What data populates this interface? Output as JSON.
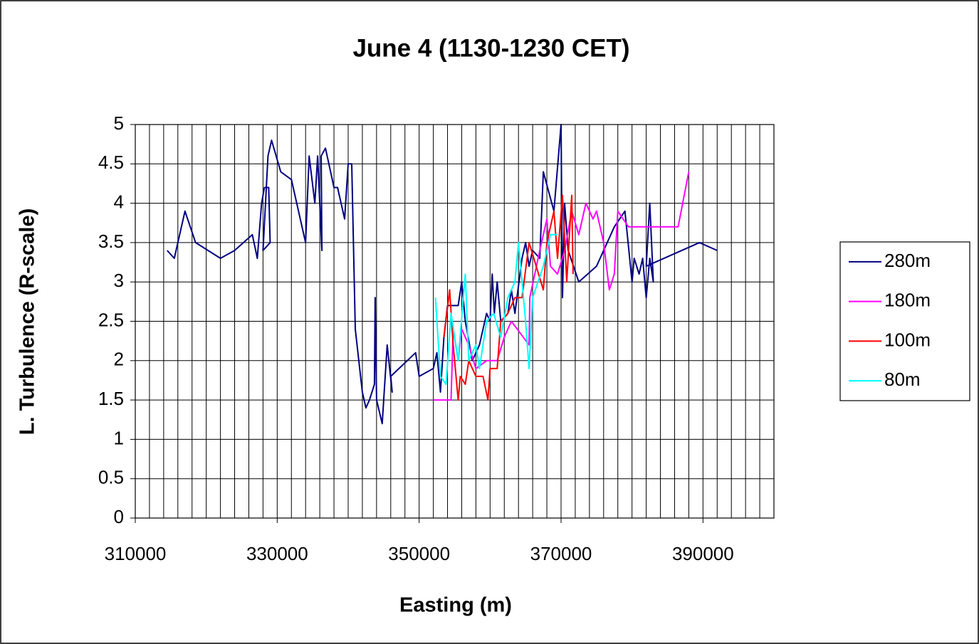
{
  "chart_data": {
    "type": "line",
    "title": "June 4 (1130-1230 CET)",
    "xlabel": "Easting (m)",
    "ylabel": "L. Turbulence (R-scale)",
    "xlim": [
      310000,
      400000
    ],
    "xticks": [
      310000,
      330000,
      350000,
      370000,
      390000
    ],
    "xgrid": [
      310000,
      312000,
      314000,
      316000,
      318000,
      320000,
      322000,
      324000,
      326000,
      328000,
      330000,
      332000,
      334000,
      336000,
      338000,
      340000,
      342000,
      344000,
      346000,
      348000,
      350000,
      352000,
      354000,
      356000,
      358000,
      360000,
      362000,
      364000,
      366000,
      368000,
      370000,
      372000,
      374000,
      376000,
      378000,
      380000,
      382000,
      384000,
      386000,
      388000,
      390000,
      392000,
      394000,
      396000,
      398000,
      400000
    ],
    "ylim": [
      0,
      5
    ],
    "yticks": [
      0,
      0.5,
      1,
      1.5,
      2,
      2.5,
      3,
      3.5,
      4,
      4.5,
      5
    ],
    "grid": true,
    "legend": "right",
    "series": [
      {
        "name": "280m",
        "color": "#000080",
        "x": [
          314500,
          315500,
          317000,
          318500,
          322000,
          324000,
          326500,
          327200,
          327800,
          328200,
          328800,
          329000,
          328000,
          328700,
          329200,
          330500,
          332000,
          334000,
          334500,
          335300,
          335700,
          336300,
          336200,
          336800,
          338000,
          338500,
          339500,
          340000,
          340500,
          341000,
          342000,
          342500,
          343000,
          343700,
          343800,
          344000,
          344800,
          345500,
          346200,
          346000,
          349500,
          350000,
          352000,
          352500,
          353000,
          353500,
          354000,
          355500,
          356000,
          356500,
          357500,
          358500,
          359500,
          360000,
          360300,
          360600,
          361000,
          361500,
          362500,
          363000,
          363500,
          364500,
          365000,
          365500,
          366000,
          367000,
          367500,
          369000,
          370000,
          370200,
          370500,
          371000,
          372500,
          375000,
          377500,
          379000,
          380000,
          380300,
          381000,
          381500,
          382000,
          382500,
          383000,
          382500,
          382000,
          389500,
          392000
        ],
        "values": [
          3.4,
          3.3,
          3.9,
          3.5,
          3.3,
          3.4,
          3.6,
          3.3,
          4.0,
          4.2,
          4.2,
          3.5,
          3.4,
          4.6,
          4.8,
          4.4,
          4.3,
          3.5,
          4.6,
          4.0,
          4.6,
          3.4,
          4.6,
          4.7,
          4.2,
          4.2,
          3.8,
          4.5,
          4.5,
          2.4,
          1.6,
          1.4,
          1.5,
          1.7,
          2.8,
          1.5,
          1.2,
          2.2,
          1.6,
          1.8,
          2.1,
          1.8,
          1.9,
          2.1,
          1.6,
          2.3,
          2.7,
          2.7,
          3.0,
          2.5,
          2.0,
          2.2,
          2.6,
          2.5,
          3.1,
          2.6,
          3.0,
          2.5,
          2.6,
          2.9,
          2.6,
          3.3,
          3.5,
          3.2,
          3.4,
          3.3,
          4.4,
          3.9,
          5.0,
          2.8,
          4.0,
          3.4,
          3.0,
          3.2,
          3.7,
          3.9,
          3.0,
          3.3,
          3.1,
          3.3,
          2.8,
          3.3,
          3.0,
          4.0,
          3.2,
          3.5,
          3.4
        ]
      },
      {
        "name": "180m",
        "color": "#ff00ff",
        "x": [
          352000,
          354500,
          354800,
          355500,
          356000,
          357000,
          358000,
          359500,
          361000,
          362000,
          363000,
          365500,
          365600,
          367000,
          368000,
          368500,
          369500,
          370500,
          371500,
          372500,
          373500,
          374500,
          375000,
          376000,
          376800,
          377500,
          378000,
          379500,
          386500,
          388000
        ],
        "values": [
          1.5,
          1.5,
          2.4,
          2.0,
          2.4,
          2.2,
          1.9,
          2.0,
          2.0,
          2.3,
          2.5,
          2.2,
          2.8,
          3.4,
          3.8,
          3.2,
          3.1,
          3.4,
          3.9,
          3.6,
          4.0,
          3.8,
          3.9,
          3.5,
          2.9,
          3.1,
          3.9,
          3.7,
          3.7,
          4.4
        ]
      },
      {
        "name": "100m",
        "color": "#ff0000",
        "x": [
          353500,
          354300,
          354800,
          355500,
          355800,
          356500,
          357000,
          358000,
          359000,
          359700,
          360000,
          361000,
          361500,
          362500,
          363500,
          364500,
          365500,
          366500,
          367500,
          368000,
          369000,
          369500,
          370200,
          370800,
          371500,
          371700
        ],
        "values": [
          2.3,
          2.9,
          2.2,
          1.5,
          1.8,
          1.7,
          2.0,
          1.8,
          1.8,
          1.5,
          1.9,
          1.9,
          2.5,
          2.6,
          2.8,
          2.8,
          3.5,
          3.2,
          2.9,
          3.5,
          3.9,
          3.3,
          4.1,
          3.0,
          4.1,
          3.1
        ]
      },
      {
        "name": "80m",
        "color": "#00ffff",
        "x": [
          352300,
          353000,
          353800,
          354500,
          355500,
          356500,
          357000,
          358000,
          358500,
          359500,
          360500,
          361500,
          362500,
          363500,
          364000,
          365000,
          365500,
          366000,
          367500,
          368500,
          369500
        ],
        "values": [
          2.8,
          1.8,
          1.7,
          2.6,
          2.0,
          3.1,
          2.0,
          2.2,
          1.9,
          2.5,
          2.6,
          2.3,
          2.8,
          3.0,
          3.5,
          2.5,
          1.9,
          2.8,
          3.2,
          3.6,
          3.6
        ]
      }
    ]
  }
}
